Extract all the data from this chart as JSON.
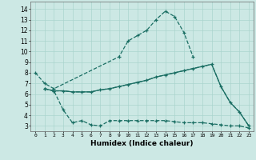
{
  "title": "",
  "xlabel": "Humidex (Indice chaleur)",
  "background_color": "#cce8e4",
  "grid_color": "#aad4ce",
  "line_color": "#1a6e63",
  "xlim": [
    -0.5,
    23.5
  ],
  "ylim": [
    2.5,
    14.7
  ],
  "xticks": [
    0,
    1,
    2,
    3,
    4,
    5,
    6,
    7,
    8,
    9,
    10,
    11,
    12,
    13,
    14,
    15,
    16,
    17,
    18,
    19,
    20,
    21,
    22,
    23
  ],
  "yticks": [
    3,
    4,
    5,
    6,
    7,
    8,
    9,
    10,
    11,
    12,
    13,
    14
  ],
  "curve1_x": [
    0,
    1,
    2,
    9,
    10,
    11,
    12,
    13,
    14,
    15,
    16,
    17
  ],
  "curve1_y": [
    8.0,
    7.0,
    6.5,
    9.5,
    11.0,
    11.5,
    12.0,
    13.0,
    13.8,
    13.3,
    11.8,
    9.5
  ],
  "curve2_x": [
    1,
    2,
    3,
    4,
    5,
    6,
    7,
    8,
    9,
    10,
    11,
    12,
    13,
    14,
    15,
    16,
    17,
    18,
    19,
    20,
    21,
    22,
    23
  ],
  "curve2_y": [
    6.5,
    6.3,
    4.5,
    3.3,
    3.5,
    3.1,
    3.0,
    3.5,
    3.5,
    3.5,
    3.5,
    3.5,
    3.5,
    3.5,
    3.4,
    3.3,
    3.3,
    3.3,
    3.2,
    3.1,
    3.0,
    3.0,
    2.8
  ],
  "curve3_x": [
    1,
    2,
    3,
    4,
    5,
    6,
    7,
    8,
    9,
    10,
    11,
    12,
    13,
    14,
    15,
    16,
    17,
    18,
    19,
    20,
    21,
    22,
    23
  ],
  "curve3_y": [
    6.5,
    6.3,
    6.3,
    6.2,
    6.2,
    6.2,
    6.4,
    6.5,
    6.7,
    6.9,
    7.1,
    7.3,
    7.6,
    7.8,
    8.0,
    8.2,
    8.4,
    8.6,
    8.8,
    6.7,
    5.2,
    4.3,
    3.0
  ],
  "curve4_x": [
    1,
    2,
    3,
    4,
    5,
    6,
    7,
    8,
    9,
    10,
    11,
    12,
    13,
    14,
    15,
    16,
    17,
    18,
    19,
    20,
    21,
    22,
    23
  ],
  "curve4_y": [
    6.5,
    6.3,
    6.3,
    6.2,
    6.2,
    6.2,
    6.4,
    6.5,
    6.7,
    6.9,
    7.1,
    7.3,
    7.6,
    7.8,
    8.0,
    8.2,
    8.4,
    8.6,
    8.8,
    6.7,
    5.2,
    4.3,
    3.0
  ]
}
